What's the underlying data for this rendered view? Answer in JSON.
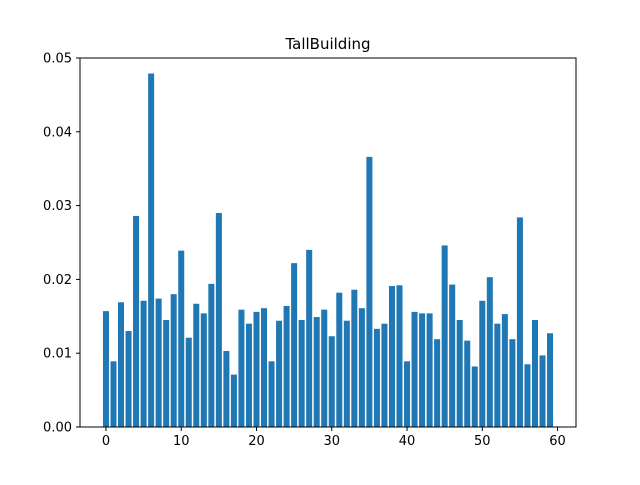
{
  "chart_data": {
    "type": "bar",
    "title": "TallBuilding",
    "xlabel": "",
    "ylabel": "",
    "x": [
      0,
      1,
      2,
      3,
      4,
      5,
      6,
      7,
      8,
      9,
      10,
      11,
      12,
      13,
      14,
      15,
      16,
      17,
      18,
      19,
      20,
      21,
      22,
      23,
      24,
      25,
      26,
      27,
      28,
      29,
      30,
      31,
      32,
      33,
      34,
      35,
      36,
      37,
      38,
      39,
      40,
      41,
      42,
      43,
      44,
      45,
      46,
      47,
      48,
      49,
      50,
      51,
      52,
      53,
      54,
      55,
      56,
      57,
      58,
      59
    ],
    "values": [
      0.0157,
      0.0089,
      0.0169,
      0.013,
      0.0286,
      0.0171,
      0.0479,
      0.0174,
      0.0145,
      0.018,
      0.0239,
      0.0121,
      0.0167,
      0.0154,
      0.0194,
      0.029,
      0.0103,
      0.0071,
      0.0159,
      0.014,
      0.0156,
      0.0161,
      0.0089,
      0.0144,
      0.0164,
      0.0222,
      0.0145,
      0.024,
      0.0149,
      0.0159,
      0.0123,
      0.0182,
      0.0144,
      0.0186,
      0.0161,
      0.0366,
      0.0133,
      0.014,
      0.0191,
      0.0192,
      0.0089,
      0.0156,
      0.0154,
      0.0154,
      0.0119,
      0.0246,
      0.0193,
      0.0145,
      0.0117,
      0.0082,
      0.0171,
      0.0203,
      0.014,
      0.0153,
      0.0119,
      0.0284,
      0.0085,
      0.0145,
      0.0097,
      0.0127
    ],
    "xlim": [
      -3.45,
      62.45
    ],
    "ylim": [
      0,
      0.05
    ],
    "xticks": [
      0,
      10,
      20,
      30,
      40,
      50,
      60
    ],
    "yticks": [
      0.0,
      0.01,
      0.02,
      0.03,
      0.04,
      0.05
    ],
    "ytick_labels": [
      "0.00",
      "0.01",
      "0.02",
      "0.03",
      "0.04",
      "0.05"
    ],
    "bar_color": "#1f77b4",
    "grid": false,
    "legend": "none"
  }
}
